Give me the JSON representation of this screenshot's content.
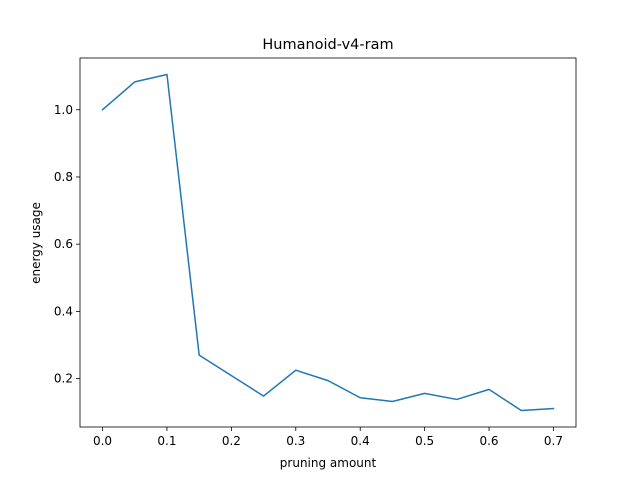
{
  "chart_data": {
    "type": "line",
    "title": "Humanoid-v4-ram",
    "xlabel": "pruning amount",
    "ylabel": "energy usage",
    "xlim": [
      -0.035,
      0.735
    ],
    "ylim": [
      0.056,
      1.154
    ],
    "x_ticks": [
      0.0,
      0.1,
      0.2,
      0.3,
      0.4,
      0.5,
      0.6,
      0.7
    ],
    "x_tick_labels": [
      "0.0",
      "0.1",
      "0.2",
      "0.3",
      "0.4",
      "0.5",
      "0.6",
      "0.7"
    ],
    "y_ticks": [
      0.2,
      0.4,
      0.6,
      0.8,
      1.0
    ],
    "y_tick_labels": [
      "0.2",
      "0.4",
      "0.6",
      "0.8",
      "1.0"
    ],
    "grid": false,
    "line_color": "#1f77b4",
    "series": [
      {
        "x": [
          0.0,
          0.05,
          0.1,
          0.15,
          0.2,
          0.25,
          0.3,
          0.35,
          0.4,
          0.45,
          0.5,
          0.55,
          0.6,
          0.65,
          0.7
        ],
        "values": [
          1.0,
          1.083,
          1.105,
          0.27,
          0.209,
          0.148,
          0.225,
          0.194,
          0.143,
          0.132,
          0.156,
          0.138,
          0.168,
          0.105,
          0.111
        ]
      }
    ]
  }
}
